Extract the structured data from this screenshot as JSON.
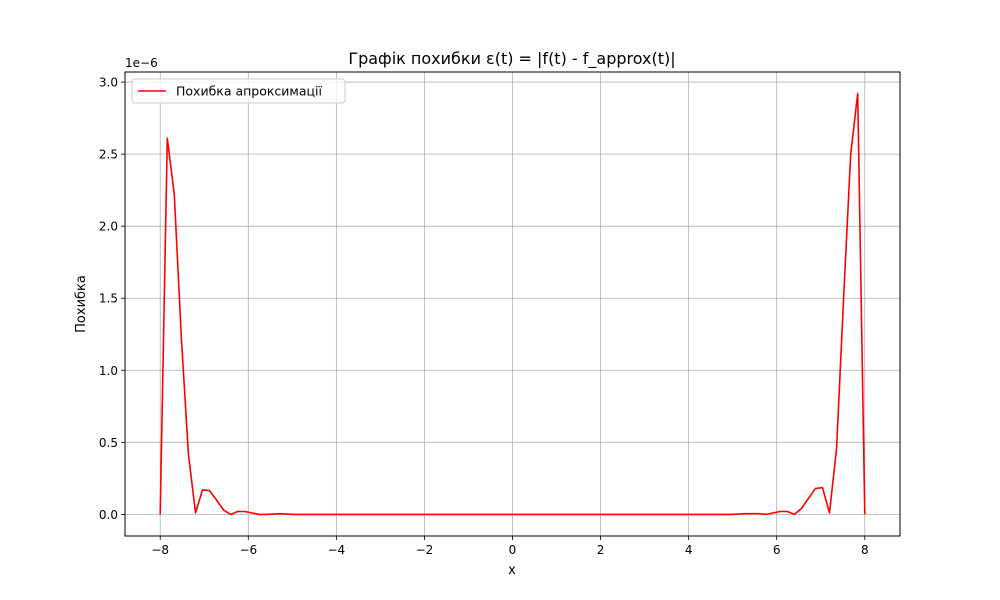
{
  "chart_data": {
    "type": "line",
    "title": "Графік похибки ε(t) = |f(t) - f_approx(t)|",
    "xlabel": "x",
    "ylabel": "Похибка",
    "y_offset_label": "1e−6",
    "y_scale_factor": 1e-06,
    "xlim": [
      -8.8,
      8.8
    ],
    "ylim": [
      -0.15,
      3.07
    ],
    "grid": true,
    "legend_position": "upper-left",
    "x_ticks": [
      -8,
      -6,
      -4,
      -2,
      0,
      2,
      4,
      6,
      8
    ],
    "x_tick_labels": [
      "−8",
      "−6",
      "−4",
      "−2",
      "0",
      "2",
      "4",
      "6",
      "8"
    ],
    "y_ticks": [
      0.0,
      0.5,
      1.0,
      1.5,
      2.0,
      2.5,
      3.0
    ],
    "y_tick_labels": [
      "0.0",
      "0.5",
      "1.0",
      "1.5",
      "2.0",
      "2.5",
      "3.0"
    ],
    "series": [
      {
        "name": "Похибка апроксимації",
        "color": "#ff0000",
        "x": [
          -8.0,
          -7.84,
          -7.68,
          -7.52,
          -7.36,
          -7.2,
          -7.04,
          -6.88,
          -6.72,
          -6.56,
          -6.4,
          -6.24,
          -6.08,
          -5.92,
          -5.76,
          -5.6,
          -5.28,
          -4.96,
          -4.64,
          -4.0,
          -3.0,
          -2.0,
          -1.0,
          0.0,
          1.0,
          2.0,
          3.0,
          4.0,
          4.64,
          4.96,
          5.28,
          5.6,
          5.76,
          5.92,
          6.08,
          6.24,
          6.4,
          6.56,
          6.72,
          6.88,
          7.04,
          7.2,
          7.36,
          7.52,
          7.68,
          7.84,
          8.0
        ],
        "y": [
          0.0,
          2.61,
          2.22,
          1.22,
          0.42,
          0.01,
          0.17,
          0.165,
          0.1,
          0.03,
          0.0,
          0.02,
          0.02,
          0.01,
          0.0,
          0.0,
          0.005,
          0.0,
          0.0,
          0.0,
          0.0,
          0.0,
          0.0,
          0.0,
          0.0,
          0.0,
          0.0,
          0.0,
          0.0,
          0.0,
          0.005,
          0.005,
          0.0,
          0.01,
          0.02,
          0.02,
          0.0,
          0.04,
          0.11,
          0.18,
          0.185,
          0.01,
          0.46,
          1.5,
          2.5,
          2.92,
          0.0
        ]
      }
    ]
  }
}
